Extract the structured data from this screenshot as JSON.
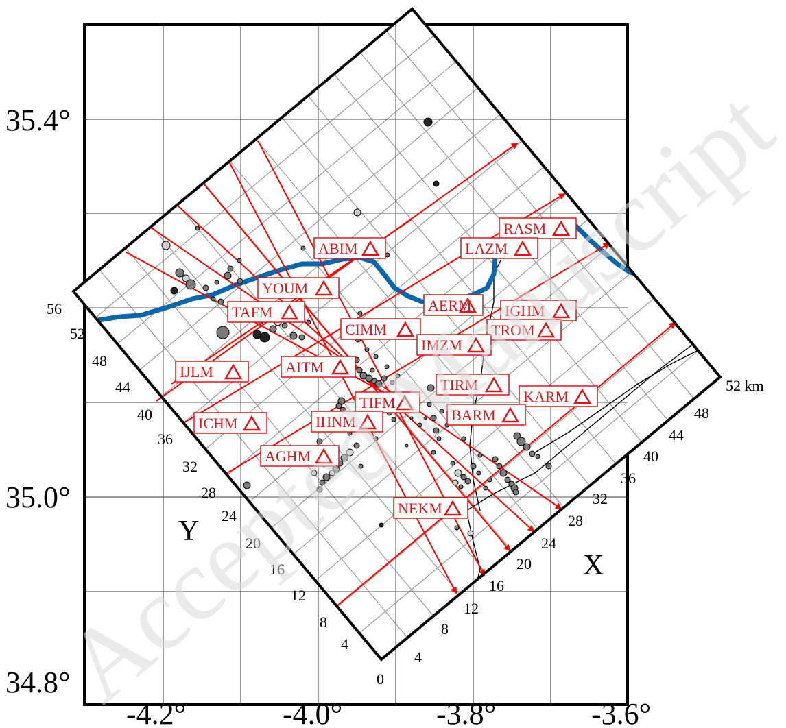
{
  "watermark": "Accepted Manuscript",
  "latitude_labels": [
    "35.4°",
    "35.0°",
    "34.8°"
  ],
  "longitude_labels": [
    "-4.2°",
    "-4.0°",
    "-3.8°",
    "-3.6°"
  ],
  "x_axis": {
    "name": "X",
    "unit_label": "52 km",
    "ticks": [
      "0",
      "4",
      "8",
      "12",
      "16",
      "20",
      "24",
      "28",
      "32",
      "36",
      "40",
      "44",
      "48"
    ]
  },
  "y_axis": {
    "name": "Y",
    "ticks": [
      "4",
      "8",
      "12",
      "16",
      "20",
      "24",
      "28",
      "32",
      "36",
      "40",
      "44",
      "48",
      "52",
      "56"
    ]
  },
  "stations": [
    "RASM",
    "ABIM",
    "LAZM",
    "YOUM",
    "AERM",
    "IGHM",
    "TAFM",
    "CIMM",
    "TROM",
    "IMZM",
    "IJLM",
    "AITM",
    "TIRM",
    "KARM",
    "TIFM",
    "BARM",
    "ICHM",
    "IHNM",
    "AGHM",
    "NEKM"
  ],
  "colors": {
    "frame": "#000000",
    "grid": "#999999",
    "profile": "#ff0000",
    "river": "#0a66a8",
    "station": "#d7191c",
    "event_fill": "#7a7a7a",
    "event_fill_light": "#cfcfcf",
    "event_fill_dark": "#222222"
  }
}
